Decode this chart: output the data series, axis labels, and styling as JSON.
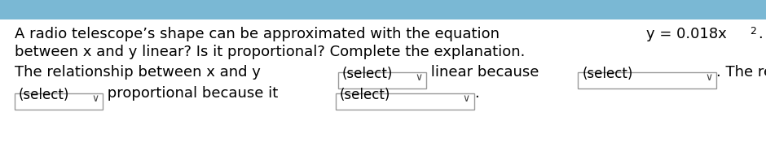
{
  "bg_top_color": "#7ab8d4",
  "bg_color": "#c8c8c8",
  "panel_color": "#ffffff",
  "text_color": "#000000",
  "dropdown_border": "#999999",
  "dropdown_color": "#ffffff",
  "font_size": 13.0,
  "para_line1_pre": "A radio telescope’s shape can be approximated with the equation ",
  "para_line1_eq": "y = 0.018x",
  "para_line1_sup": "2",
  "para_line1_post": ". Is the relationship",
  "para_line2": "between x and y linear? Is it proportional? Complete the explanation.",
  "row1_pre": "The relationship between x and y ",
  "row1_mid": " linear because ",
  "row1_post": ". The relationship",
  "dd1_text": "(select)",
  "dd2_text": "(select)",
  "row2_mid": " proportional because it ",
  "dd3_text": "(select)",
  "dd4_text": "(select)",
  "row2_dot": "."
}
